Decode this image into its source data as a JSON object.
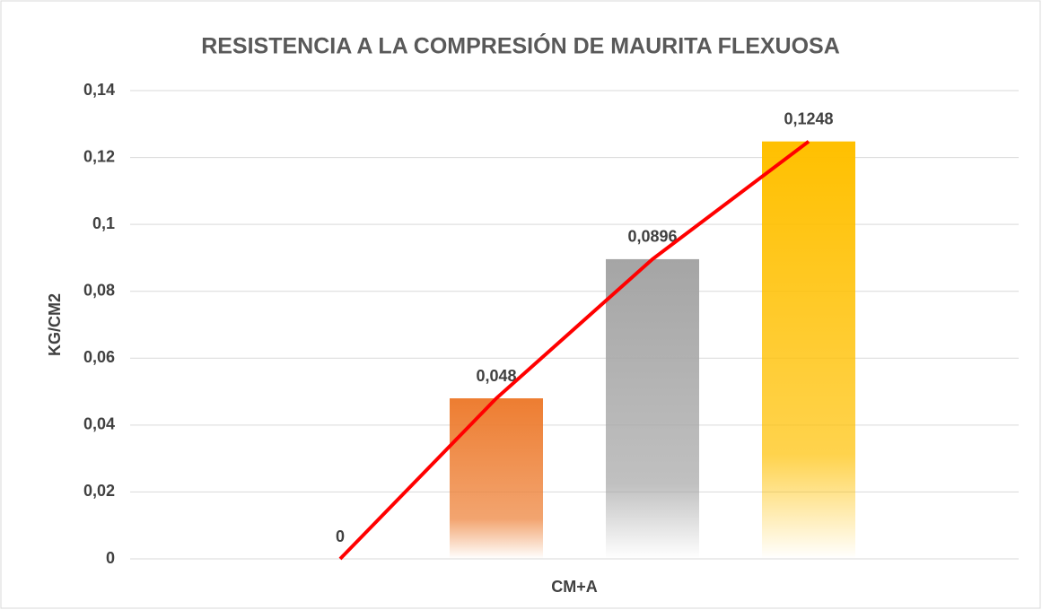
{
  "chart_data": {
    "type": "bar",
    "title": "RESISTENCIA A LA COMPRESIÓN DE MAURITA FLEXUOSA",
    "y_label": "KG/CM2",
    "categories": [
      "CM+A"
    ],
    "series": [
      {
        "color": "#4472c4",
        "values": [
          0
        ],
        "value_labels": [
          "0"
        ]
      },
      {
        "color": "#ed7d31",
        "values": [
          0.048
        ],
        "value_labels": [
          "0,048"
        ]
      },
      {
        "color": "#a5a5a5",
        "values": [
          0.0896
        ],
        "value_labels": [
          "0,0896"
        ]
      },
      {
        "color": "#ffc000",
        "values": [
          0.1248
        ],
        "value_labels": [
          "0,1248"
        ]
      }
    ],
    "trend_line": {
      "color": "#ff0000"
    },
    "ylim": [
      0,
      0.14
    ],
    "yticks": [
      {
        "value": 0,
        "label": "0"
      },
      {
        "value": 0.02,
        "label": "0,02"
      },
      {
        "value": 0.04,
        "label": "0,04"
      },
      {
        "value": 0.06,
        "label": "0,06"
      },
      {
        "value": 0.08,
        "label": "0,08"
      },
      {
        "value": 0.1,
        "label": "0,1"
      },
      {
        "value": 0.12,
        "label": "0,12"
      },
      {
        "value": 0.14,
        "label": "0,14"
      }
    ],
    "grid": true
  }
}
